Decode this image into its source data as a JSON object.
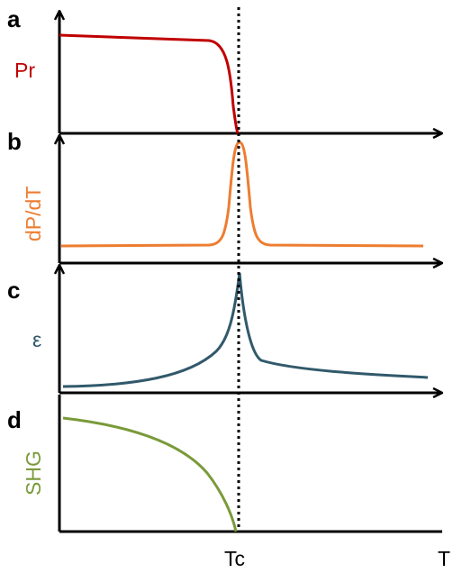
{
  "chart_data": {
    "type": "line",
    "x_axis_ticks": [
      "Tc",
      "T"
    ],
    "panels": [
      {
        "letter": "a",
        "ylabel": "Pr",
        "color": "#C00000",
        "curve": "step-drop-to-zero-at-Tc"
      },
      {
        "letter": "b",
        "ylabel": "dP/dT",
        "color": "#ED7D31",
        "curve": "sharp-peak-at-Tc"
      },
      {
        "letter": "c",
        "ylabel": "ε",
        "color": "#31596B",
        "curve": "cusp-peak-at-Tc"
      },
      {
        "letter": "d",
        "ylabel": "SHG",
        "color": "#7A9A3A",
        "curve": "decrease-to-zero-at-Tc"
      }
    ],
    "dashed_vertical_line_at": "Tc"
  }
}
